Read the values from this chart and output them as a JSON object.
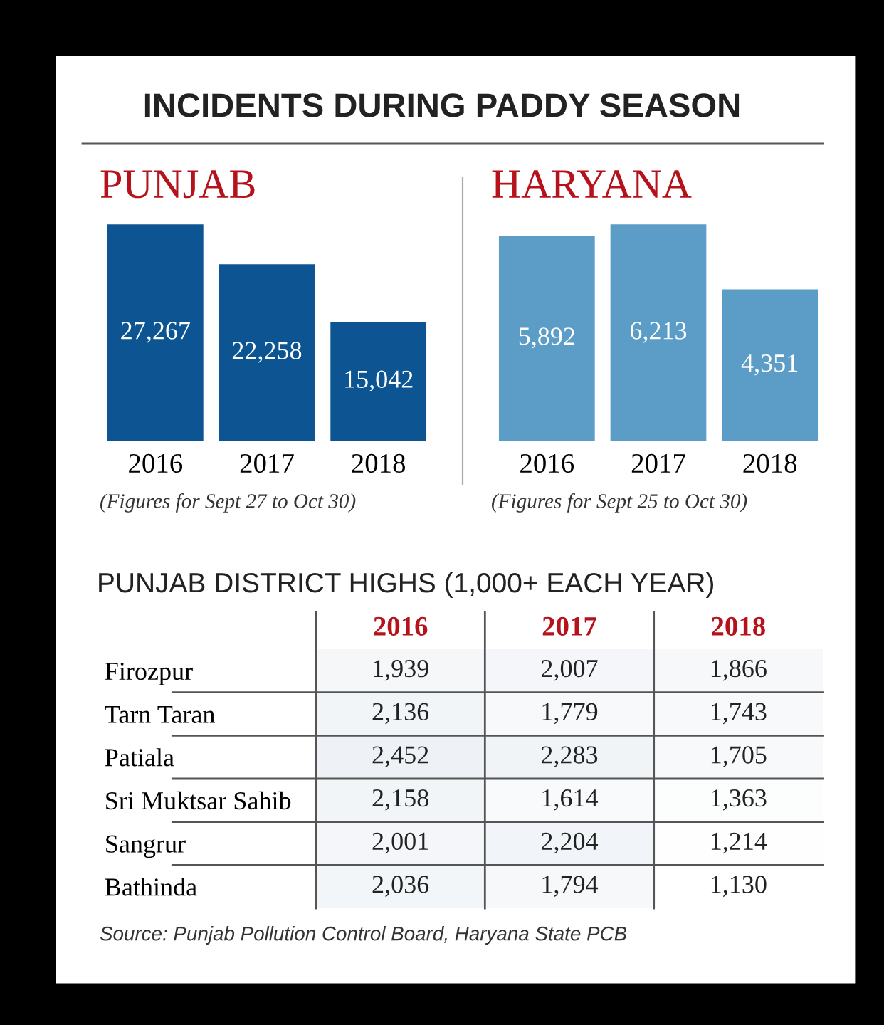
{
  "chart_data": [
    {
      "type": "bar",
      "title": "INCIDENTS DURING PADDY SEASON",
      "subtitle": "PUNJAB",
      "categories": [
        "2016",
        "2017",
        "2018"
      ],
      "series": [
        {
          "color": "#0c5592",
          "values": [
            27267,
            22258,
            15042
          ],
          "value_labels": [
            "27,267",
            "22,258",
            "15,042"
          ]
        }
      ],
      "annotations": [
        "(Figures for Sept 27 to Oct 30)"
      ]
    },
    {
      "type": "bar",
      "subtitle": "HARYANA",
      "categories": [
        "2016",
        "2017",
        "2018"
      ],
      "series": [
        {
          "color": "#5b9dc7",
          "values": [
            5892,
            6213,
            4351
          ],
          "value_labels": [
            "5,892",
            "6,213",
            "4,351"
          ]
        }
      ],
      "annotations": [
        "(Figures for Sept 25 to Oct 30)"
      ]
    },
    {
      "type": "heatmap",
      "title": "PUNJAB DISTRICT HIGHS (1,000+ EACH YEAR)",
      "categories": [
        "2016",
        "2017",
        "2018"
      ],
      "y_categories": [
        "Firozpur",
        "Tarn Taran",
        "Patiala",
        "Sri Muktsar Sahib",
        "Sangrur",
        "Bathinda"
      ],
      "cells": [
        [
          1939,
          2007,
          1866
        ],
        [
          2136,
          1779,
          1743
        ],
        [
          2452,
          2283,
          1705
        ],
        [
          2158,
          1614,
          1363
        ],
        [
          2001,
          2204,
          1214
        ],
        [
          2036,
          1794,
          1130
        ]
      ],
      "cell_labels": [
        [
          "1,939",
          "2,007",
          "1,866"
        ],
        [
          "2,136",
          "1,779",
          "1,743"
        ],
        [
          "2,452",
          "2,283",
          "1,705"
        ],
        [
          "2,158",
          "1,614",
          "1,363"
        ],
        [
          "2,001",
          "2,204",
          "1,214"
        ],
        [
          "2,036",
          "1,794",
          "1,130"
        ]
      ],
      "annotations": [
        "Source: Punjab Pollution Control Board, Haryana State PCB"
      ]
    }
  ]
}
